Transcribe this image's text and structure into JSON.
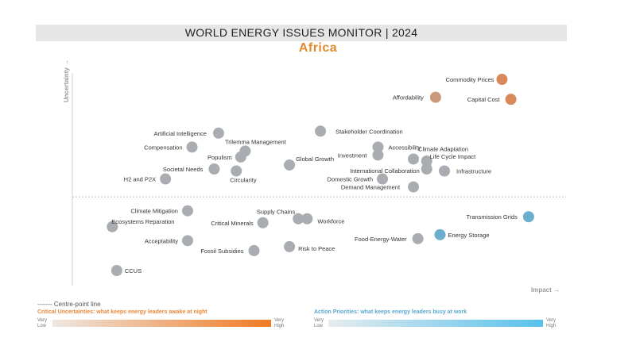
{
  "header": {
    "title": "WORLD ENERGY ISSUES MONITOR | 2024",
    "region": "Africa"
  },
  "chart_data": {
    "type": "scatter",
    "xlabel": "Impact →",
    "ylabel": "Uncertainty →",
    "xlim": [
      0,
      100
    ],
    "ylim": [
      0,
      100
    ],
    "centre_point_y": 37,
    "colors": {
      "neutral": "#a9adb1",
      "critical": "#d9885a",
      "critical_light": "#c9997a",
      "action": "#6baecd"
    },
    "points": [
      {
        "label": "Commodity Prices",
        "x": 92,
        "y": 96,
        "group": "critical"
      },
      {
        "label": "Affordability",
        "x": 77,
        "y": 87,
        "group": "critical_light"
      },
      {
        "label": "Capital Cost",
        "x": 94,
        "y": 86,
        "group": "critical"
      },
      {
        "label": "Artificial Intelligence",
        "x": 28,
        "y": 69,
        "group": "neutral"
      },
      {
        "label": "Stakeholder Coordination",
        "x": 51,
        "y": 70,
        "group": "neutral"
      },
      {
        "label": "Compensation",
        "x": 22,
        "y": 62,
        "group": "neutral"
      },
      {
        "label": "Trilemma Management",
        "x": 34,
        "y": 60,
        "group": "neutral"
      },
      {
        "label": "Populism",
        "x": 33,
        "y": 57,
        "group": "neutral"
      },
      {
        "label": "Accessibility",
        "x": 64,
        "y": 62,
        "group": "neutral"
      },
      {
        "label": "Investment",
        "x": 64,
        "y": 58,
        "group": "neutral"
      },
      {
        "label": "Climate Adaptation",
        "x": 72,
        "y": 56,
        "group": "neutral"
      },
      {
        "label": "Life Cycle Impact",
        "x": 75,
        "y": 55,
        "group": "neutral"
      },
      {
        "label": "Global Growth",
        "x": 44,
        "y": 53,
        "group": "neutral"
      },
      {
        "label": "Societal Needs",
        "x": 27,
        "y": 51,
        "group": "neutral"
      },
      {
        "label": "Circularity",
        "x": 32,
        "y": 50,
        "group": "neutral"
      },
      {
        "label": "International Collaboration",
        "x": 75,
        "y": 51,
        "group": "neutral"
      },
      {
        "label": "Infrastructure",
        "x": 79,
        "y": 50,
        "group": "neutral"
      },
      {
        "label": "H2 and P2X",
        "x": 16,
        "y": 46,
        "group": "neutral"
      },
      {
        "label": "Domestic Growth",
        "x": 65,
        "y": 46,
        "group": "neutral"
      },
      {
        "label": "Demand Management",
        "x": 72,
        "y": 42,
        "group": "neutral"
      },
      {
        "label": "Climate Mitigation",
        "x": 21,
        "y": 30,
        "group": "neutral"
      },
      {
        "label": "Supply Chains",
        "x": 46,
        "y": 26,
        "group": "neutral"
      },
      {
        "label": "Workforce",
        "x": 48,
        "y": 26,
        "group": "neutral"
      },
      {
        "label": "Critical Minerals",
        "x": 38,
        "y": 24,
        "group": "neutral"
      },
      {
        "label": "Ecosystems Reparation",
        "x": 4,
        "y": 22,
        "group": "neutral"
      },
      {
        "label": "Transmission Grids",
        "x": 98,
        "y": 27,
        "group": "action"
      },
      {
        "label": "Energy Storage",
        "x": 78,
        "y": 18,
        "group": "action"
      },
      {
        "label": "Food-Energy-Water",
        "x": 73,
        "y": 16,
        "group": "neutral"
      },
      {
        "label": "Acceptability",
        "x": 21,
        "y": 15,
        "group": "neutral"
      },
      {
        "label": "Risk to Peace",
        "x": 44,
        "y": 12,
        "group": "neutral"
      },
      {
        "label": "Fossil Subsidies",
        "x": 36,
        "y": 10,
        "group": "neutral"
      },
      {
        "label": "CCUS",
        "x": 5,
        "y": 0,
        "group": "neutral"
      }
    ]
  },
  "legend": {
    "centre_point": "------- Centre-point line",
    "critical": "Critical Uncertainties: what keeps energy leaders awake at night",
    "action": "Action Priorities: what keeps energy leaders busy at work",
    "very": "Very",
    "low": "Low",
    "high": "High"
  }
}
